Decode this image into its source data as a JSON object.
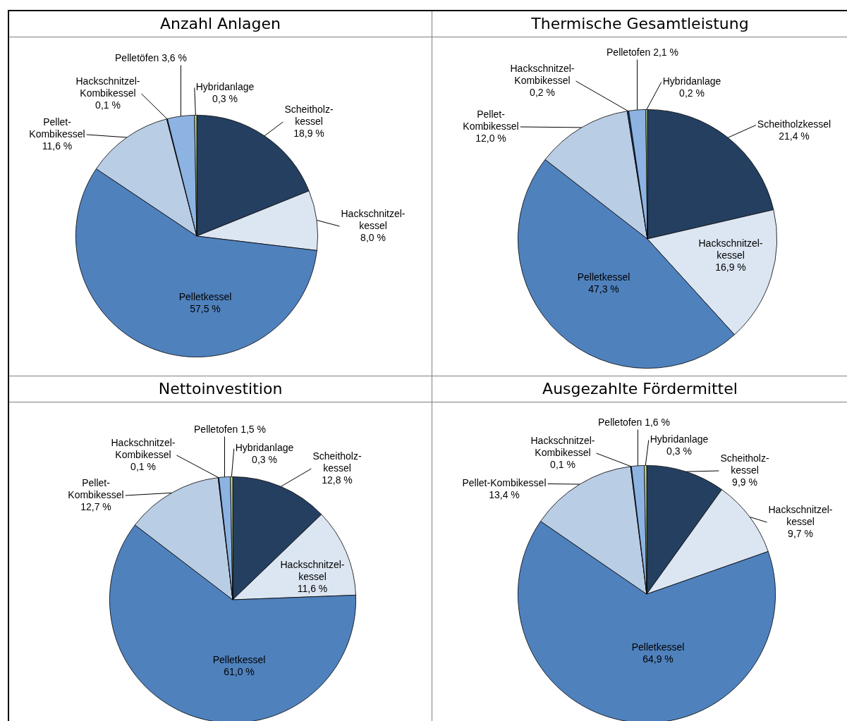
{
  "chart_data": [
    {
      "type": "pie",
      "title": "Anzahl Anlagen",
      "categories": [
        "Scheitholz-\nkessel",
        "Hackschnitzel-\nkessel",
        "Pelletkessel",
        "Pellet-\nKombikessel",
        "Hackschnitzel-\nKombikessel",
        "Pelletöfen",
        "Hybridanlage"
      ],
      "values": [
        18.9,
        8.0,
        57.5,
        11.6,
        0.1,
        3.6,
        0.3
      ],
      "value_labels": [
        "18,9 %",
        "8,0 %",
        "57,5 %",
        "11,6 %",
        "0,1 %",
        "3,6 %",
        "0,3 %"
      ],
      "colors": [
        "#243f60",
        "#dce6f2",
        "#4f81bd",
        "#b9cde5",
        "#1f3864",
        "#8db3e2",
        "#c4d79b"
      ]
    },
    {
      "type": "pie",
      "title": "Thermische Gesamtleistung",
      "categories": [
        "Scheitholzkessel",
        "Hackschnitzel-\nkessel",
        "Pelletkessel",
        "Pellet-\nKombikessel",
        "Hackschnitzel-\nKombikessel",
        "Pelletofen",
        "Hybridanlage"
      ],
      "values": [
        21.4,
        16.9,
        47.3,
        12.0,
        0.2,
        2.1,
        0.2
      ],
      "value_labels": [
        "21,4 %",
        "16,9 %",
        "47,3 %",
        "12,0 %",
        "0,2 %",
        "2,1 %",
        "0,2 %"
      ],
      "colors": [
        "#243f60",
        "#dce6f2",
        "#4f81bd",
        "#b9cde5",
        "#1f3864",
        "#8db3e2",
        "#c4d79b"
      ]
    },
    {
      "type": "pie",
      "title": "Nettoinvestition",
      "categories": [
        "Scheitholz-\nkessel",
        "Hackschnitzel-\nkessel",
        "Pelletkessel",
        "Pellet-\nKombikessel",
        "Hackschnitzel-\nKombikessel",
        "Pelletofen",
        "Hybridanlage"
      ],
      "values": [
        12.8,
        11.6,
        61.0,
        12.7,
        0.1,
        1.5,
        0.3
      ],
      "value_labels": [
        "12,8 %",
        "11,6 %",
        "61,0 %",
        "12,7 %",
        "0,1 %",
        "1,5 %",
        "0,3 %"
      ],
      "colors": [
        "#243f60",
        "#dce6f2",
        "#4f81bd",
        "#b9cde5",
        "#1f3864",
        "#8db3e2",
        "#c4d79b"
      ]
    },
    {
      "type": "pie",
      "title": "Ausgezahlte Fördermittel",
      "categories": [
        "Scheitholz-\nkessel",
        "Hackschnitzel-\nkessel",
        "Pelletkessel",
        "Pellet-Kombikessel",
        "Hackschnitzel-\nKombikessel",
        "Pelletofen",
        "Hybridanlage"
      ],
      "values": [
        9.9,
        9.7,
        64.9,
        13.4,
        0.1,
        1.6,
        0.3
      ],
      "value_labels": [
        "9,9 %",
        "9,7 %",
        "64,9 %",
        "13,4 %",
        "0,1 %",
        "1,6 %",
        "0,3 %"
      ],
      "colors": [
        "#243f60",
        "#dce6f2",
        "#4f81bd",
        "#b9cde5",
        "#1f3864",
        "#8db3e2",
        "#c4d79b"
      ]
    }
  ]
}
